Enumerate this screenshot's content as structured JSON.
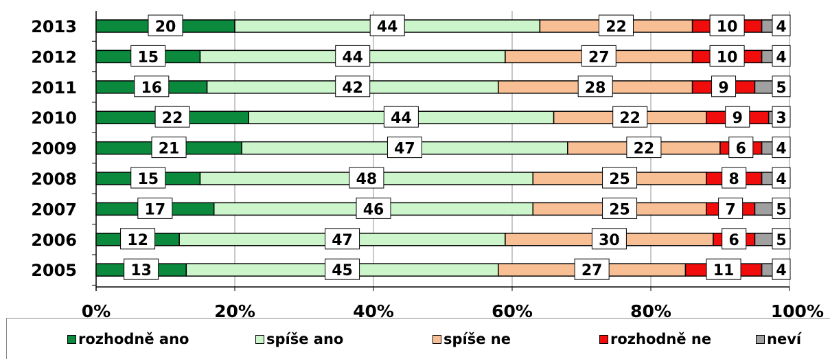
{
  "chart_data": {
    "type": "stacked-bar-horizontal-100",
    "categories": [
      "2013",
      "2012",
      "2011",
      "2010",
      "2009",
      "2008",
      "2007",
      "2006",
      "2005"
    ],
    "series": [
      {
        "name": "rozhodně ano",
        "color": "#0b8a3e",
        "values": [
          20,
          15,
          16,
          22,
          21,
          15,
          17,
          12,
          13
        ]
      },
      {
        "name": "spíše ano",
        "color": "#ccf5cc",
        "values": [
          44,
          44,
          42,
          44,
          47,
          48,
          46,
          47,
          45
        ]
      },
      {
        "name": "spíše ne",
        "color": "#f9bf94",
        "values": [
          22,
          27,
          28,
          22,
          22,
          25,
          25,
          30,
          27
        ]
      },
      {
        "name": "rozhodně ne",
        "color": "#f20d0d",
        "values": [
          10,
          10,
          9,
          9,
          6,
          8,
          7,
          6,
          11
        ]
      },
      {
        "name": "neví",
        "color": "#a0a0a0",
        "values": [
          4,
          4,
          5,
          3,
          4,
          4,
          5,
          5,
          4
        ]
      }
    ],
    "xlim": [
      0,
      100
    ],
    "x_ticks": [
      "0%",
      "20%",
      "40%",
      "60%",
      "80%",
      "100%"
    ],
    "grid": true,
    "legend_position": "bottom",
    "data_labels": true
  }
}
